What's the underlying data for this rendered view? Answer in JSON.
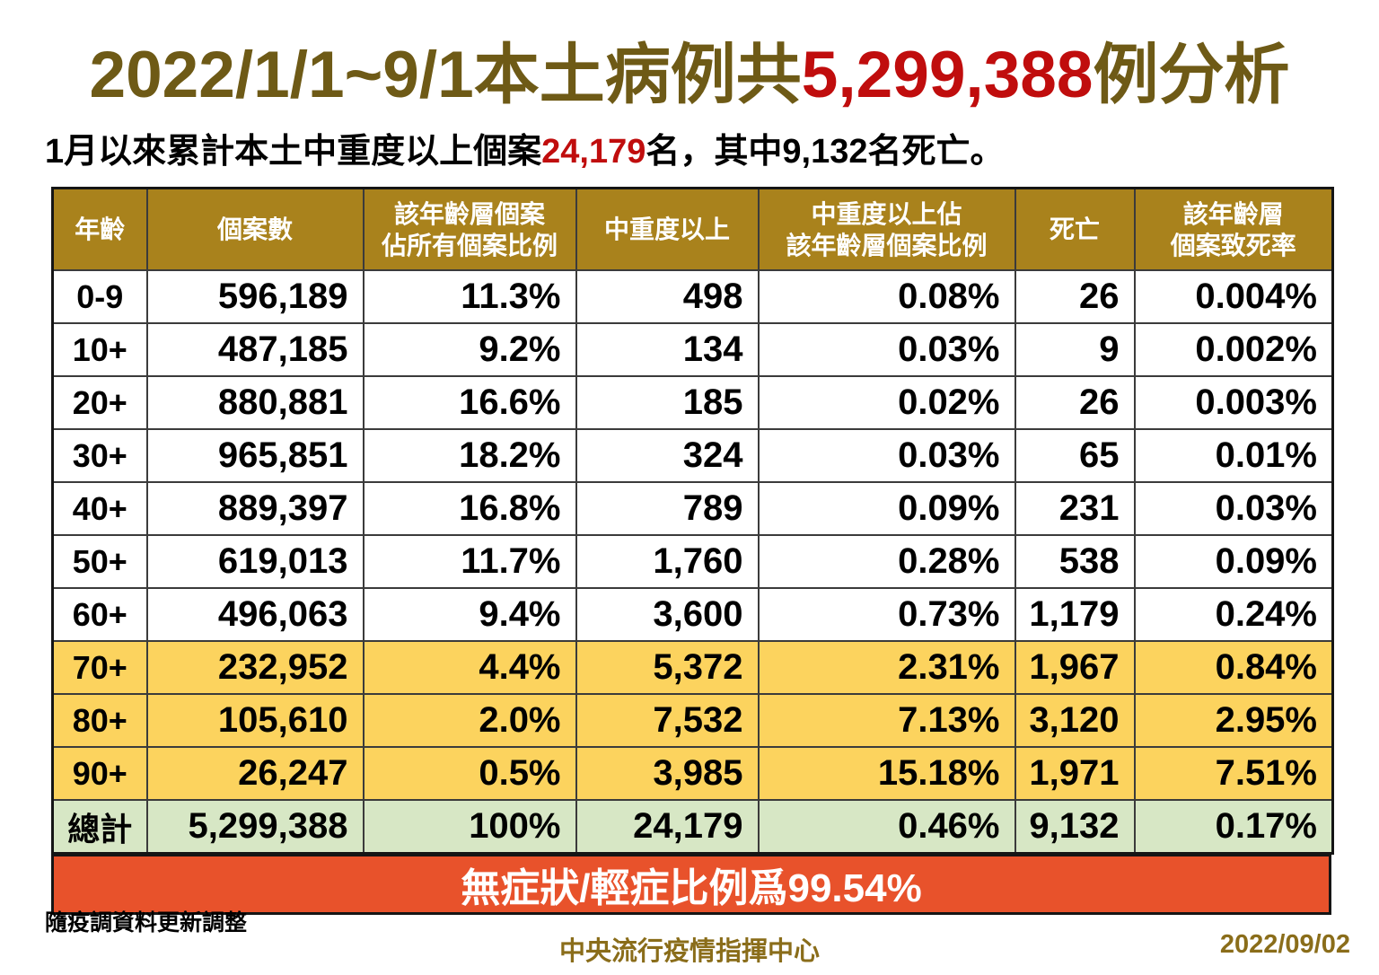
{
  "title": {
    "prefix": "2022/1/1~9/1本土病例共",
    "highlight": "5,299,388",
    "suffix": "例分析"
  },
  "subtitle": {
    "part1": "1月以來累計本土中重度以上個案",
    "highlight": "24,179",
    "part2": "名，其中9,132名死亡。"
  },
  "chart_data": {
    "type": "table",
    "columns": [
      "年齡",
      "個案數",
      "該年齡層個案\n佔所有個案比例",
      "中重度以上",
      "中重度以上佔\n該年齡層個案比例",
      "死亡",
      "該年齡層\n個案致死率"
    ],
    "rows": [
      [
        "0-9",
        "596,189",
        "11.3%",
        "498",
        "0.08%",
        "26",
        "0.004%"
      ],
      [
        "10+",
        "487,185",
        "9.2%",
        "134",
        "0.03%",
        "9",
        "0.002%"
      ],
      [
        "20+",
        "880,881",
        "16.6%",
        "185",
        "0.02%",
        "26",
        "0.003%"
      ],
      [
        "30+",
        "965,851",
        "18.2%",
        "324",
        "0.03%",
        "65",
        "0.01%"
      ],
      [
        "40+",
        "889,397",
        "16.8%",
        "789",
        "0.09%",
        "231",
        "0.03%"
      ],
      [
        "50+",
        "619,013",
        "11.7%",
        "1,760",
        "0.28%",
        "538",
        "0.09%"
      ],
      [
        "60+",
        "496,063",
        "9.4%",
        "3,600",
        "0.73%",
        "1,179",
        "0.24%"
      ],
      [
        "70+",
        "232,952",
        "4.4%",
        "5,372",
        "2.31%",
        "1,967",
        "0.84%"
      ],
      [
        "80+",
        "105,610",
        "2.0%",
        "7,532",
        "7.13%",
        "3,120",
        "2.95%"
      ],
      [
        "90+",
        "26,247",
        "0.5%",
        "3,985",
        "15.18%",
        "1,971",
        "7.51%"
      ],
      [
        "總計",
        "5,299,388",
        "100%",
        "24,179",
        "0.46%",
        "9,132",
        "0.17%"
      ]
    ],
    "row_styles": [
      "plain",
      "plain",
      "plain",
      "plain",
      "plain",
      "plain",
      "plain",
      "yellow",
      "yellow",
      "yellow",
      "green"
    ],
    "banner": "無症狀/輕症比例爲99.54%"
  },
  "footer": {
    "note": "隨疫調資料更新調整",
    "org": "中央流行疫情指揮中心",
    "date": "2022/09/02"
  },
  "colors": {
    "title_gold": "#6e5a16",
    "highlight_red": "#c00d0d",
    "header_gold": "#a9821c",
    "row_yellow": "#fcd35e",
    "row_green": "#d7e7c5",
    "banner_orange": "#e8522b",
    "footer_gold": "#8a6d1a"
  }
}
